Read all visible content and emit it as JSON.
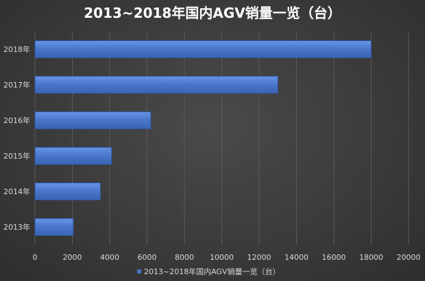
{
  "chart_data": {
    "type": "bar",
    "orientation": "horizontal",
    "title": "2013~2018年国内AGV销量一览（台）",
    "categories": [
      "2018年",
      "2017年",
      "2016年",
      "2015年",
      "2014年",
      "2013年"
    ],
    "series": [
      {
        "name": "2013~2018年国内AGV销量一览（台）",
        "values": [
          18000,
          13000,
          6200,
          4100,
          3500,
          2050
        ]
      }
    ],
    "xlim": [
      0,
      20000
    ],
    "xticks": [
      0,
      2000,
      4000,
      6000,
      8000,
      10000,
      12000,
      14000,
      16000,
      18000,
      20000
    ],
    "xtick_labels": [
      "0",
      "2000",
      "4000",
      "6000",
      "8000",
      "10000",
      "12000",
      "14000",
      "16000",
      "18000",
      "20000"
    ],
    "grid": true,
    "legend_position": "bottom",
    "colors": {
      "bar": "#4472c4",
      "bar_top": "#5b8ae0",
      "bar_edge": "#2f569e",
      "background": "#3a3a3a",
      "grid": "#5a5a5a",
      "text": "#d9d9d9",
      "title": "#ffffff"
    }
  }
}
